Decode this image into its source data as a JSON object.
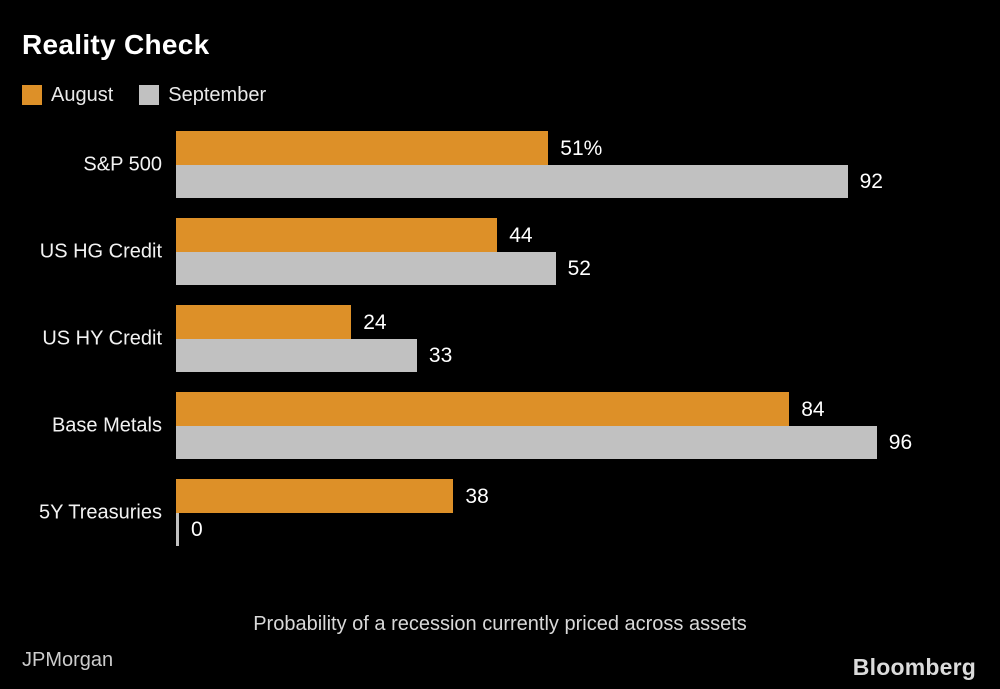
{
  "title": "Reality Check",
  "legend": {
    "items": [
      {
        "label": "August",
        "color": "#DD9028"
      },
      {
        "label": "September",
        "color": "#C1C1C1"
      }
    ]
  },
  "chart_data": {
    "type": "bar",
    "orientation": "horizontal",
    "title": "Reality Check",
    "caption": "Probability of a recession currently priced across assets",
    "categories": [
      "S&P 500",
      "US HG Credit",
      "US HY Credit",
      "Base Metals",
      "5Y Treasuries"
    ],
    "series": [
      {
        "name": "August",
        "color": "#DD9028",
        "values": [
          51,
          44,
          24,
          84,
          38
        ],
        "value_labels": [
          "51%",
          "44",
          "24",
          "84",
          "38"
        ]
      },
      {
        "name": "September",
        "color": "#C1C1C1",
        "values": [
          92,
          52,
          33,
          96,
          0
        ],
        "value_labels": [
          "92",
          "52",
          "33",
          "96",
          "0"
        ]
      }
    ],
    "xlim": [
      0,
      100
    ],
    "grid": false,
    "legend_position": "top-left",
    "value_labels_position": "outside-end"
  },
  "footer": {
    "source": "JPMorgan",
    "brand": "Bloomberg"
  },
  "colors": {
    "background": "#000000",
    "august": "#DD9028",
    "september": "#C1C1C1",
    "category_text": "#F2F2F2",
    "value_text": "#FFFFFF",
    "caption_text": "#D9D9D9"
  }
}
